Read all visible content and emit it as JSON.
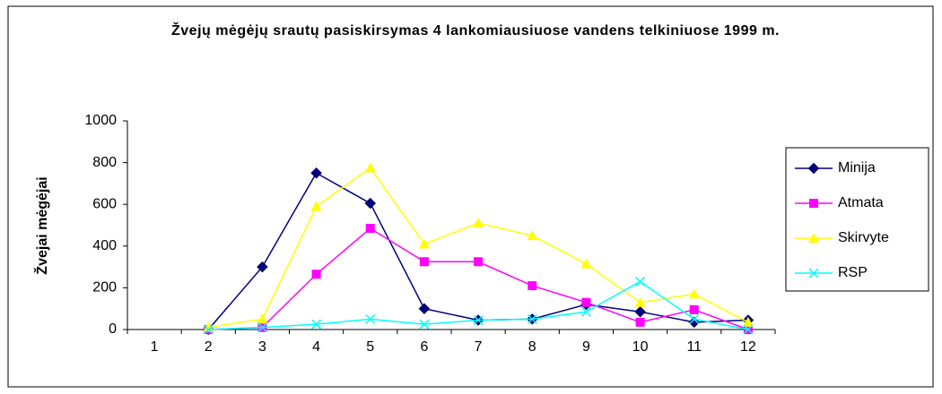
{
  "chart_data": {
    "type": "line",
    "title": "Žvejų mėgėjų srautų pasiskirsymas 4 lankomiausiuose vandens telkiniuose 1999 m.",
    "y_label": "Žvejai mėgėjai",
    "categories": [
      "1",
      "2",
      "3",
      "4",
      "5",
      "6",
      "7",
      "8",
      "9",
      "10",
      "11",
      "12"
    ],
    "series": [
      {
        "name": "Minija",
        "color": "#000080",
        "marker": "diamond",
        "values": [
          null,
          0,
          300,
          750,
          605,
          100,
          45,
          50,
          120,
          85,
          35,
          45
        ]
      },
      {
        "name": "Atmata",
        "color": "#FF00FF",
        "marker": "square",
        "values": [
          null,
          0,
          10,
          265,
          485,
          325,
          325,
          210,
          130,
          35,
          95,
          0
        ]
      },
      {
        "name": "Skirvyte",
        "color": "#FFFF00",
        "marker": "triangle",
        "values": [
          null,
          10,
          50,
          590,
          775,
          410,
          510,
          450,
          315,
          130,
          170,
          35
        ]
      },
      {
        "name": "RSP",
        "color": "#00FFFF",
        "marker": "x",
        "values": [
          null,
          0,
          10,
          25,
          50,
          25,
          45,
          50,
          85,
          230,
          50,
          0
        ]
      }
    ],
    "ylim": [
      0,
      1000
    ],
    "yticks": [
      0,
      200,
      400,
      600,
      800,
      1000
    ],
    "grid": false,
    "legend": "right"
  }
}
